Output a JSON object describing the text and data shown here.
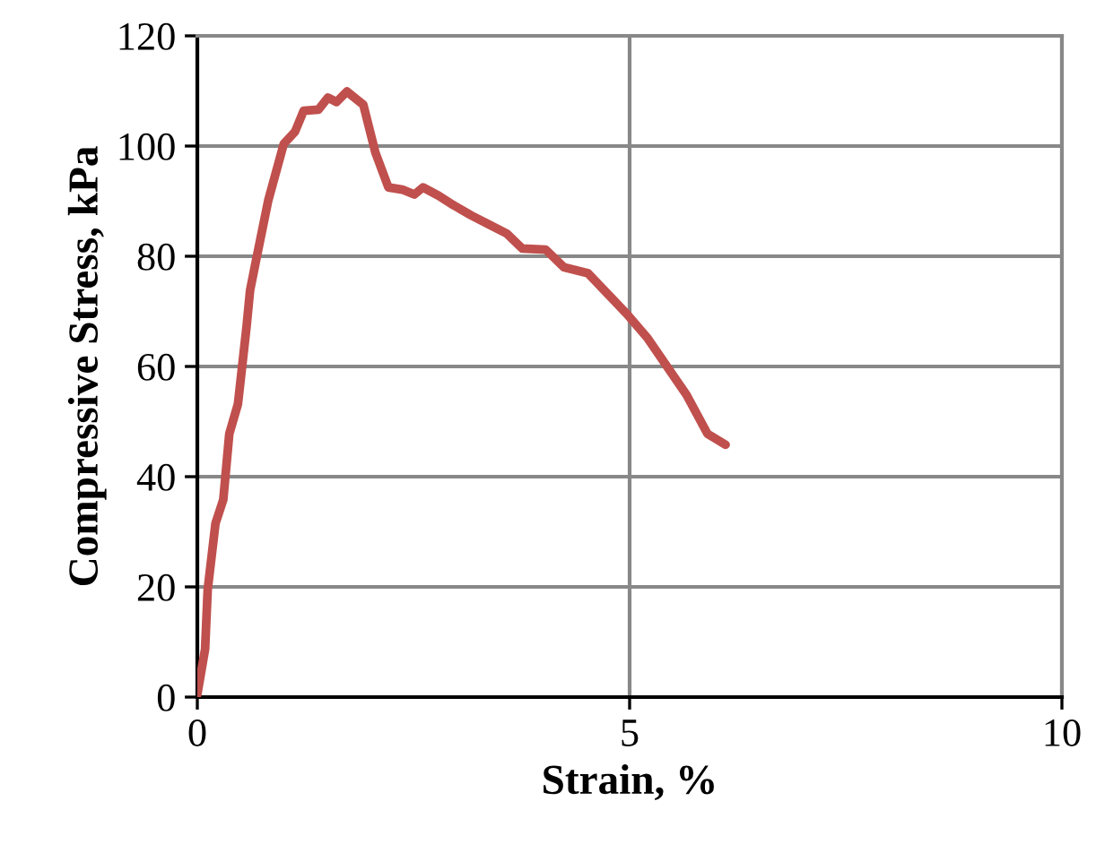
{
  "chart_data": {
    "type": "line",
    "xlabel": "Strain, %",
    "ylabel": "Compressive Stress, kPa",
    "xlim": [
      0,
      10
    ],
    "xticks": [
      0,
      5,
      10
    ],
    "ylim": [
      0,
      120
    ],
    "yticks": [
      0,
      20,
      40,
      60,
      80,
      100,
      120
    ],
    "grid": true,
    "series": [
      {
        "color": "#c0504d",
        "x": [
          0,
          0.09,
          0.12,
          0.21,
          0.3,
          0.37,
          0.47,
          0.57,
          0.61,
          0.68,
          0.82,
          1.0,
          1.13,
          1.23,
          1.4,
          1.51,
          1.61,
          1.73,
          1.92,
          2.06,
          2.21,
          2.37,
          2.51,
          2.61,
          2.79,
          2.96,
          3.17,
          3.37,
          3.58,
          3.76,
          4.03,
          4.24,
          4.52,
          4.97,
          5.21,
          5.66,
          5.9,
          6.11
        ],
        "values": [
          0.5,
          8.7,
          19.5,
          31.5,
          35.8,
          47.8,
          53.2,
          67.3,
          73.8,
          79.3,
          90.1,
          100.4,
          102.6,
          106.4,
          106.6,
          108.8,
          108.0,
          109.9,
          107.5,
          98.8,
          92.5,
          92.1,
          91.2,
          92.5,
          91.0,
          89.3,
          87.4,
          85.8,
          84.1,
          81.4,
          81.2,
          78.0,
          76.9,
          69.5,
          65.1,
          54.8,
          47.8,
          45.8
        ]
      }
    ]
  }
}
